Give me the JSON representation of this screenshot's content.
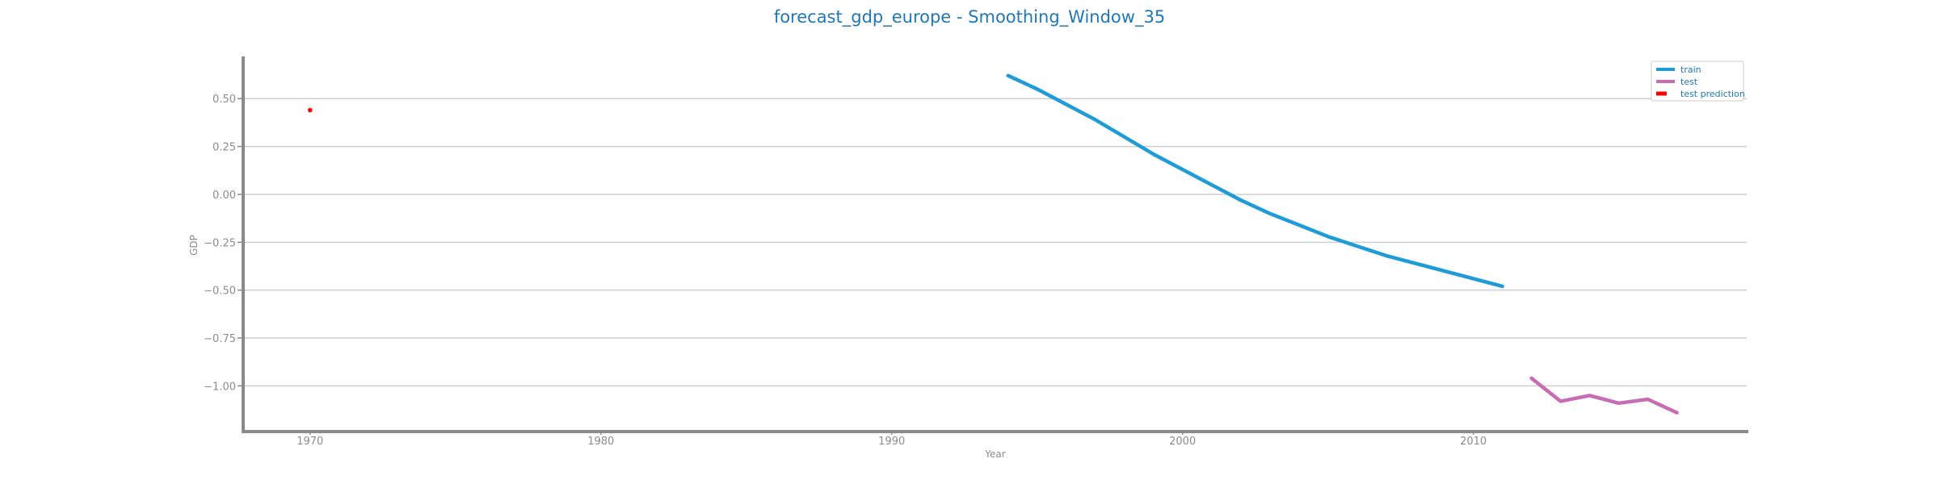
{
  "chart_data": {
    "type": "line",
    "title": "forecast_gdp_europe - Smoothing_Window_35",
    "xlabel": "Year",
    "ylabel": "GDP",
    "xlim": [
      1967.7,
      2019.4
    ],
    "ylim": [
      -1.23,
      0.72
    ],
    "xticks": [
      1970,
      1980,
      1990,
      2000,
      2010
    ],
    "yticks": [
      0.5,
      0.25,
      0.0,
      -0.25,
      -0.5,
      -0.75,
      -1.0
    ],
    "ytick_labels": [
      "0.50",
      "0.25",
      "0.00",
      "−0.25",
      "−0.50",
      "−0.75",
      "−1.00"
    ],
    "grid": "horizontal",
    "legend_position": "top-right",
    "series": [
      {
        "name": "train",
        "color": "#1f9bd7",
        "style": "line",
        "x": [
          1994,
          1995,
          1996,
          1997,
          1998,
          1999,
          2000,
          2001,
          2002,
          2003,
          2004,
          2005,
          2006,
          2007,
          2008,
          2009,
          2010,
          2011
        ],
        "y": [
          0.62,
          0.55,
          0.47,
          0.39,
          0.3,
          0.21,
          0.13,
          0.05,
          -0.03,
          -0.1,
          -0.16,
          -0.22,
          -0.27,
          -0.32,
          -0.36,
          -0.4,
          -0.44,
          -0.48
        ]
      },
      {
        "name": "test",
        "color": "#c86db3",
        "style": "line",
        "x": [
          2012,
          2013,
          2014,
          2015,
          2016,
          2017
        ],
        "y": [
          -0.96,
          -1.08,
          -1.05,
          -1.09,
          -1.07,
          -1.14
        ]
      },
      {
        "name": "test prediction",
        "color": "#ff0000",
        "style": "dashed",
        "x": [
          1970
        ],
        "y": [
          0.44
        ]
      }
    ]
  }
}
